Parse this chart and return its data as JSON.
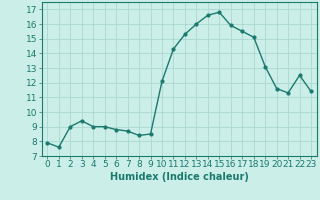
{
  "x": [
    0,
    1,
    2,
    3,
    4,
    5,
    6,
    7,
    8,
    9,
    10,
    11,
    12,
    13,
    14,
    15,
    16,
    17,
    18,
    19,
    20,
    21,
    22,
    23
  ],
  "y": [
    7.9,
    7.6,
    9.0,
    9.4,
    9.0,
    9.0,
    8.8,
    8.7,
    8.4,
    8.5,
    12.1,
    14.3,
    15.3,
    16.0,
    16.6,
    16.8,
    15.9,
    15.5,
    15.1,
    13.1,
    11.6,
    11.3,
    12.5,
    11.4
  ],
  "line_color": "#1a7a6e",
  "marker": "o",
  "markersize": 2.0,
  "linewidth": 1.0,
  "xlabel": "Humidex (Indice chaleur)",
  "ylim": [
    7,
    17.5
  ],
  "xlim": [
    -0.5,
    23.5
  ],
  "yticks": [
    7,
    8,
    9,
    10,
    11,
    12,
    13,
    14,
    15,
    16,
    17
  ],
  "xticks": [
    0,
    1,
    2,
    3,
    4,
    5,
    6,
    7,
    8,
    9,
    10,
    11,
    12,
    13,
    14,
    15,
    16,
    17,
    18,
    19,
    20,
    21,
    22,
    23
  ],
  "xtick_labels": [
    "0",
    "1",
    "2",
    "3",
    "4",
    "5",
    "6",
    "7",
    "8",
    "9",
    "10",
    "11",
    "12",
    "13",
    "14",
    "15",
    "16",
    "17",
    "18",
    "19",
    "20",
    "21",
    "22",
    "23"
  ],
  "bg_color": "#cceee8",
  "grid_color": "#aad8d0",
  "tick_color": "#1a7a6e",
  "label_color": "#1a7a6e",
  "xlabel_fontsize": 7,
  "tick_fontsize": 6.5
}
